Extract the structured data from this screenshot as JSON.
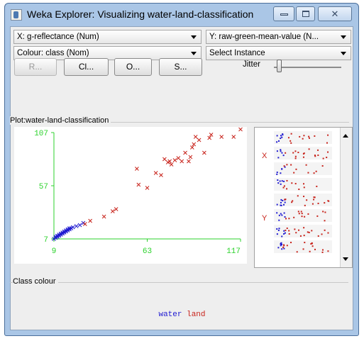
{
  "window": {
    "title": "Weka Explorer: Visualizing water-land-classification",
    "minimize_glyph": "",
    "maximize_glyph": "",
    "close_glyph": "✕"
  },
  "controls": {
    "x_axis": "X: g-reflectance (Num)",
    "y_axis": "Y: raw-green-mean-value (N...",
    "colour": "Colour: class (Nom)",
    "select_instance": "Select Instance",
    "buttons": [
      "R...",
      "Cl...",
      "O...",
      "S..."
    ],
    "jitter_label": "Jitter"
  },
  "plot": {
    "title": "Plot:water-land-classification"
  },
  "class_colour": {
    "title": "Class colour",
    "classes": [
      {
        "name": "water",
        "color": "#1f1ad1"
      },
      {
        "name": "land",
        "color": "#c8231b"
      }
    ]
  },
  "minimap": {
    "labels": [
      "X",
      "Y"
    ],
    "colors": {
      "water": "#1f1ad1",
      "land": "#c8231b"
    }
  },
  "chart_data": {
    "type": "scatter",
    "xlim": [
      9,
      117
    ],
    "ylim": [
      7,
      107
    ],
    "x_ticks": [
      "9",
      "63",
      "117"
    ],
    "y_ticks": [
      "7",
      "57",
      "107"
    ],
    "axis_color": "#2cd22c",
    "series": [
      {
        "name": "water",
        "color": "#1f1ad1",
        "marker": "x",
        "points": [
          [
            9,
            7
          ],
          [
            10,
            8
          ],
          [
            10,
            9
          ],
          [
            11,
            9
          ],
          [
            11,
            10
          ],
          [
            12,
            10
          ],
          [
            12,
            11
          ],
          [
            13,
            11
          ],
          [
            13,
            12
          ],
          [
            14,
            12
          ],
          [
            14,
            13
          ],
          [
            15,
            13
          ],
          [
            15,
            14
          ],
          [
            16,
            14
          ],
          [
            16,
            15
          ],
          [
            17,
            15
          ],
          [
            17,
            16
          ],
          [
            18,
            16
          ],
          [
            18,
            17
          ],
          [
            19,
            17
          ],
          [
            20,
            18
          ],
          [
            22,
            19
          ],
          [
            24,
            20
          ],
          [
            26,
            22
          ]
        ]
      },
      {
        "name": "land",
        "color": "#c8231b",
        "marker": "x",
        "points": [
          [
            27,
            21
          ],
          [
            30,
            24
          ],
          [
            38,
            28
          ],
          [
            43,
            33
          ],
          [
            45,
            35
          ],
          [
            58,
            58
          ],
          [
            63,
            55
          ],
          [
            68,
            69
          ],
          [
            71,
            67
          ],
          [
            73,
            82
          ],
          [
            75,
            79
          ],
          [
            76,
            80
          ],
          [
            77,
            77
          ],
          [
            79,
            81
          ],
          [
            81,
            83
          ],
          [
            83,
            80
          ],
          [
            85,
            88
          ],
          [
            88,
            84
          ],
          [
            87,
            80
          ],
          [
            89,
            93
          ],
          [
            90,
            96
          ],
          [
            91,
            103
          ],
          [
            93,
            100
          ],
          [
            96,
            88
          ],
          [
            99,
            102
          ],
          [
            100,
            105
          ],
          [
            113,
            103
          ],
          [
            117,
            110
          ],
          [
            106,
            103
          ],
          [
            57,
            73
          ]
        ]
      }
    ]
  }
}
